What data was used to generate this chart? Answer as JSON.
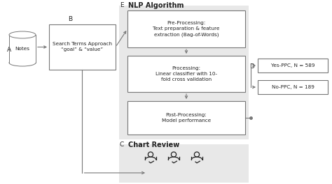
{
  "bg_color": "#ffffff",
  "label_A": "A",
  "label_B": "B",
  "label_C": "C",
  "label_D": "D",
  "label_E": "E",
  "notes_label": "Notes",
  "box_B_text": "Search Terms Approach\n“goal” & “value”",
  "box_pre": "Pre-Processing:\nText preparation & feature\nextraction (Bag-of-Words)",
  "box_proc": "Processing:\nLinear classifier with 10-\nfold cross validation",
  "box_post": "Post-Processing:\nModel performance",
  "nlp_title": "NLP Algorithm",
  "chart_review_title": "Chart Review",
  "box_D1": "Yes-PPC, N = 589",
  "box_D2": "No-PPC, N = 189",
  "gray_bg": "#e8e8e8",
  "box_edge": "#777777",
  "arrow_color": "#777777",
  "text_color": "#222222",
  "font_size_label": 6.5,
  "font_size_box": 5.2,
  "font_size_title": 7.0
}
